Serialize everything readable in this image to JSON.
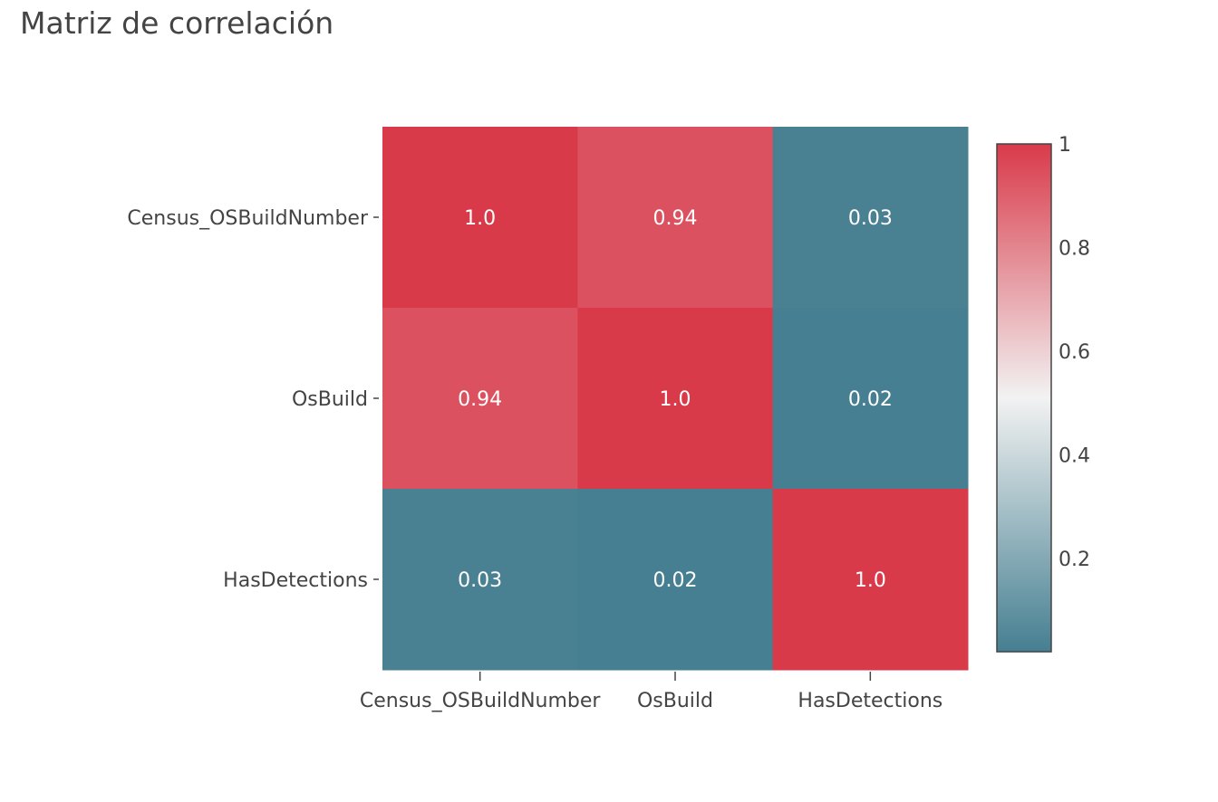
{
  "chart_data": {
    "type": "heatmap",
    "title": "Matriz de correlación",
    "x_categories": [
      "Census_OSBuildNumber",
      "OsBuild",
      "HasDetections"
    ],
    "y_categories": [
      "Census_OSBuildNumber",
      "OsBuild",
      "HasDetections"
    ],
    "values": [
      [
        1.0,
        0.94,
        0.03
      ],
      [
        0.94,
        1.0,
        0.02
      ],
      [
        0.03,
        0.02,
        1.0
      ]
    ],
    "cell_labels": [
      [
        "1.0",
        "0.94",
        "0.03"
      ],
      [
        "0.94",
        "1.0",
        "0.02"
      ],
      [
        "0.03",
        "0.02",
        "1.0"
      ]
    ],
    "colorscale": {
      "min": 0.02,
      "max": 1,
      "stops": [
        {
          "t": 0.0,
          "color": "#457f91"
        },
        {
          "t": 0.5,
          "color": "#f2f2f2"
        },
        {
          "t": 1.0,
          "color": "#d93a4a"
        }
      ]
    },
    "colorbar_ticks": [
      {
        "value": 0.2,
        "label": "0.2"
      },
      {
        "value": 0.4,
        "label": "0.4"
      },
      {
        "value": 0.6,
        "label": "0.6"
      },
      {
        "value": 0.8,
        "label": "0.8"
      },
      {
        "value": 1,
        "label": "1"
      }
    ]
  }
}
